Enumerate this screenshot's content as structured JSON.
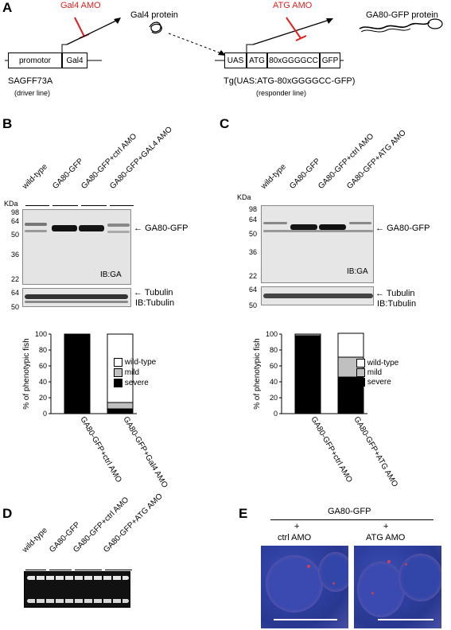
{
  "panels": {
    "A": "A",
    "B": "B",
    "C": "C",
    "D": "D",
    "E": "E"
  },
  "panelA": {
    "gal4_amo": "Gal4 AMO",
    "gal4_protein": "Gal4 protein",
    "atg_amo": "ATG AMO",
    "ga80_protein": "GA80-GFP protein",
    "promotor": "promotor",
    "gal4": "Gal4",
    "sagff": "SAGFF73A",
    "driver": "(driver line)",
    "uas": "UAS",
    "atg": "ATG",
    "repeat": "80xGGGGCC",
    "gfp": "GFP",
    "tg": "Tg(UAS:ATG-80xGGGGCC-GFP)",
    "responder": "(responder line)"
  },
  "panelB": {
    "lanes": [
      "wild-type",
      "GA80-GFP",
      "GA80-GFP+ctrl AMO",
      "GA80-GFP+GAL4 AMO"
    ],
    "kda": "KDa",
    "markers_top": [
      "98",
      "64",
      "50",
      "36",
      "22"
    ],
    "markers_bottom": [
      "64",
      "50"
    ],
    "arrow_ga80": "GA80-GFP",
    "ib_ga": "IB:GA",
    "arrow_tub": "Tubulin",
    "ib_tub": "IB:Tubulin"
  },
  "panelC": {
    "lanes": [
      "wild-type",
      "GA80-GFP",
      "GA80-GFP+ctrl AMO",
      "GA80-GFP+ATG AMO"
    ],
    "kda": "KDa",
    "markers_top": [
      "98",
      "64",
      "50",
      "36",
      "22"
    ],
    "markers_bottom": [
      "64",
      "50"
    ],
    "arrow_ga80": "GA80-GFP",
    "ib_ga": "IB:GA",
    "arrow_tub": "Tubulin",
    "ib_tub": "IB:Tubulin"
  },
  "legend": [
    "wild-type",
    "mild",
    "severe"
  ],
  "colors": {
    "wild-type": "#ffffff",
    "mild": "#c0c0c0",
    "severe": "#000000",
    "red": "#e0221f"
  },
  "chart_data": [
    {
      "type": "bar",
      "ylabel": "% of phenotypic fish",
      "ylim": [
        0,
        100
      ],
      "yticks": [
        "0",
        "20",
        "40",
        "60",
        "80",
        "100"
      ],
      "categories": [
        "GA80-GFP+ctrl AMO",
        "GA80-GFP+Gal4 AMO"
      ],
      "series": [
        {
          "name": "severe",
          "values": [
            100,
            6
          ]
        },
        {
          "name": "mild",
          "values": [
            0,
            8
          ]
        },
        {
          "name": "wild-type",
          "values": [
            0,
            86
          ]
        }
      ]
    },
    {
      "type": "bar",
      "ylabel": "% of phenotypic fish",
      "ylim": [
        0,
        100
      ],
      "yticks": [
        "0",
        "20",
        "40",
        "60",
        "80",
        "100"
      ],
      "categories": [
        "GA80-GFP+ctrl AMO",
        "GA80-GFP+ATG AMO"
      ],
      "series": [
        {
          "name": "severe",
          "values": [
            98,
            46
          ]
        },
        {
          "name": "mild",
          "values": [
            2,
            25
          ]
        },
        {
          "name": "wild-type",
          "values": [
            0,
            30
          ]
        }
      ]
    }
  ],
  "panelD": {
    "lanes": [
      "wild-type",
      "GA80-GFP",
      "GA80-GFP+ctrl AMO",
      "GA80-GFP+ATG AMO"
    ]
  },
  "panelE": {
    "header": "GA80-GFP",
    "plus1": "+",
    "cond1": "ctrl AMO",
    "plus2": "+",
    "cond2": "ATG AMO"
  }
}
